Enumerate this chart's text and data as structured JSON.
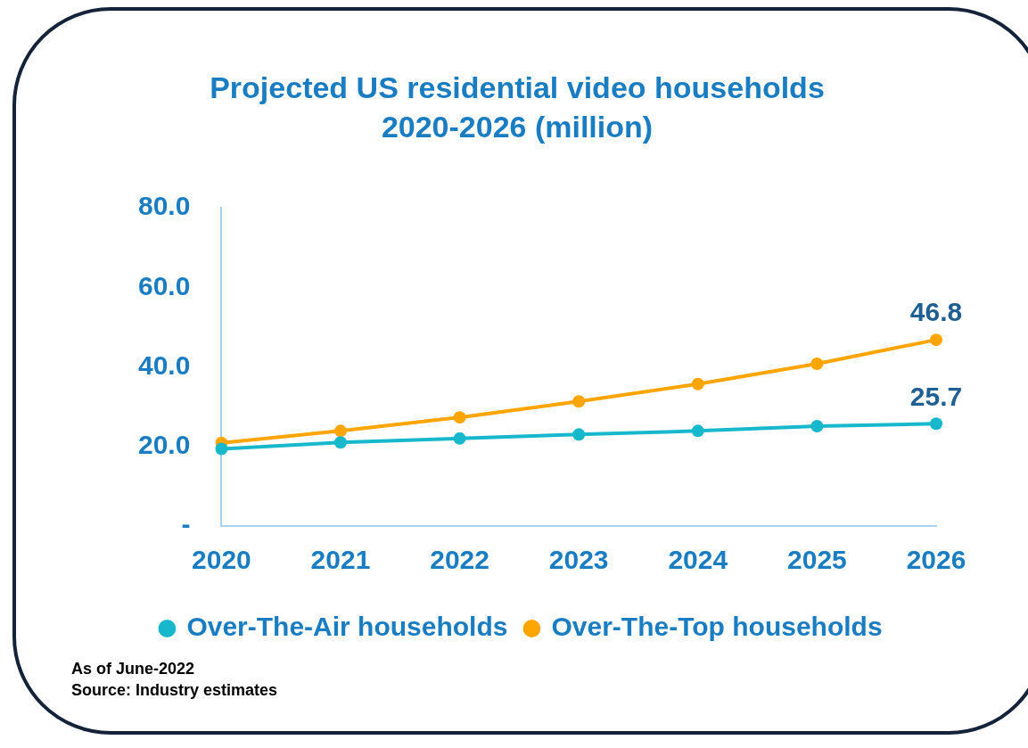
{
  "chart_data": {
    "type": "line",
    "title": "Projected US residential video households 2020-2026 (million)",
    "categories": [
      "2020",
      "2021",
      "2022",
      "2023",
      "2024",
      "2025",
      "2026"
    ],
    "series": [
      {
        "name": "Over-The-Air households",
        "color": "#17b8cc",
        "values": [
          19.4,
          21.0,
          22.0,
          23.0,
          23.9,
          25.1,
          25.7
        ],
        "value_labels": [
          null,
          null,
          null,
          null,
          null,
          null,
          "25.7"
        ]
      },
      {
        "name": "Over-The-Top households",
        "color": "#ffa500",
        "values": [
          20.9,
          23.9,
          27.3,
          31.3,
          35.7,
          40.8,
          46.8
        ],
        "value_labels": [
          null,
          null,
          null,
          null,
          null,
          null,
          "46.8"
        ]
      }
    ],
    "ylim": [
      0,
      80
    ],
    "yticks": [
      {
        "value": 0,
        "label": "-"
      },
      {
        "value": 20,
        "label": "20.0"
      },
      {
        "value": 40,
        "label": "40.0"
      },
      {
        "value": 60,
        "label": "60.0"
      },
      {
        "value": 80,
        "label": "80.0"
      }
    ],
    "grid": false,
    "legend": "bottom",
    "marker": "circle",
    "line_style": "solid",
    "annotations": [
      "As of June-2022",
      "Source: Industry estimates"
    ]
  }
}
